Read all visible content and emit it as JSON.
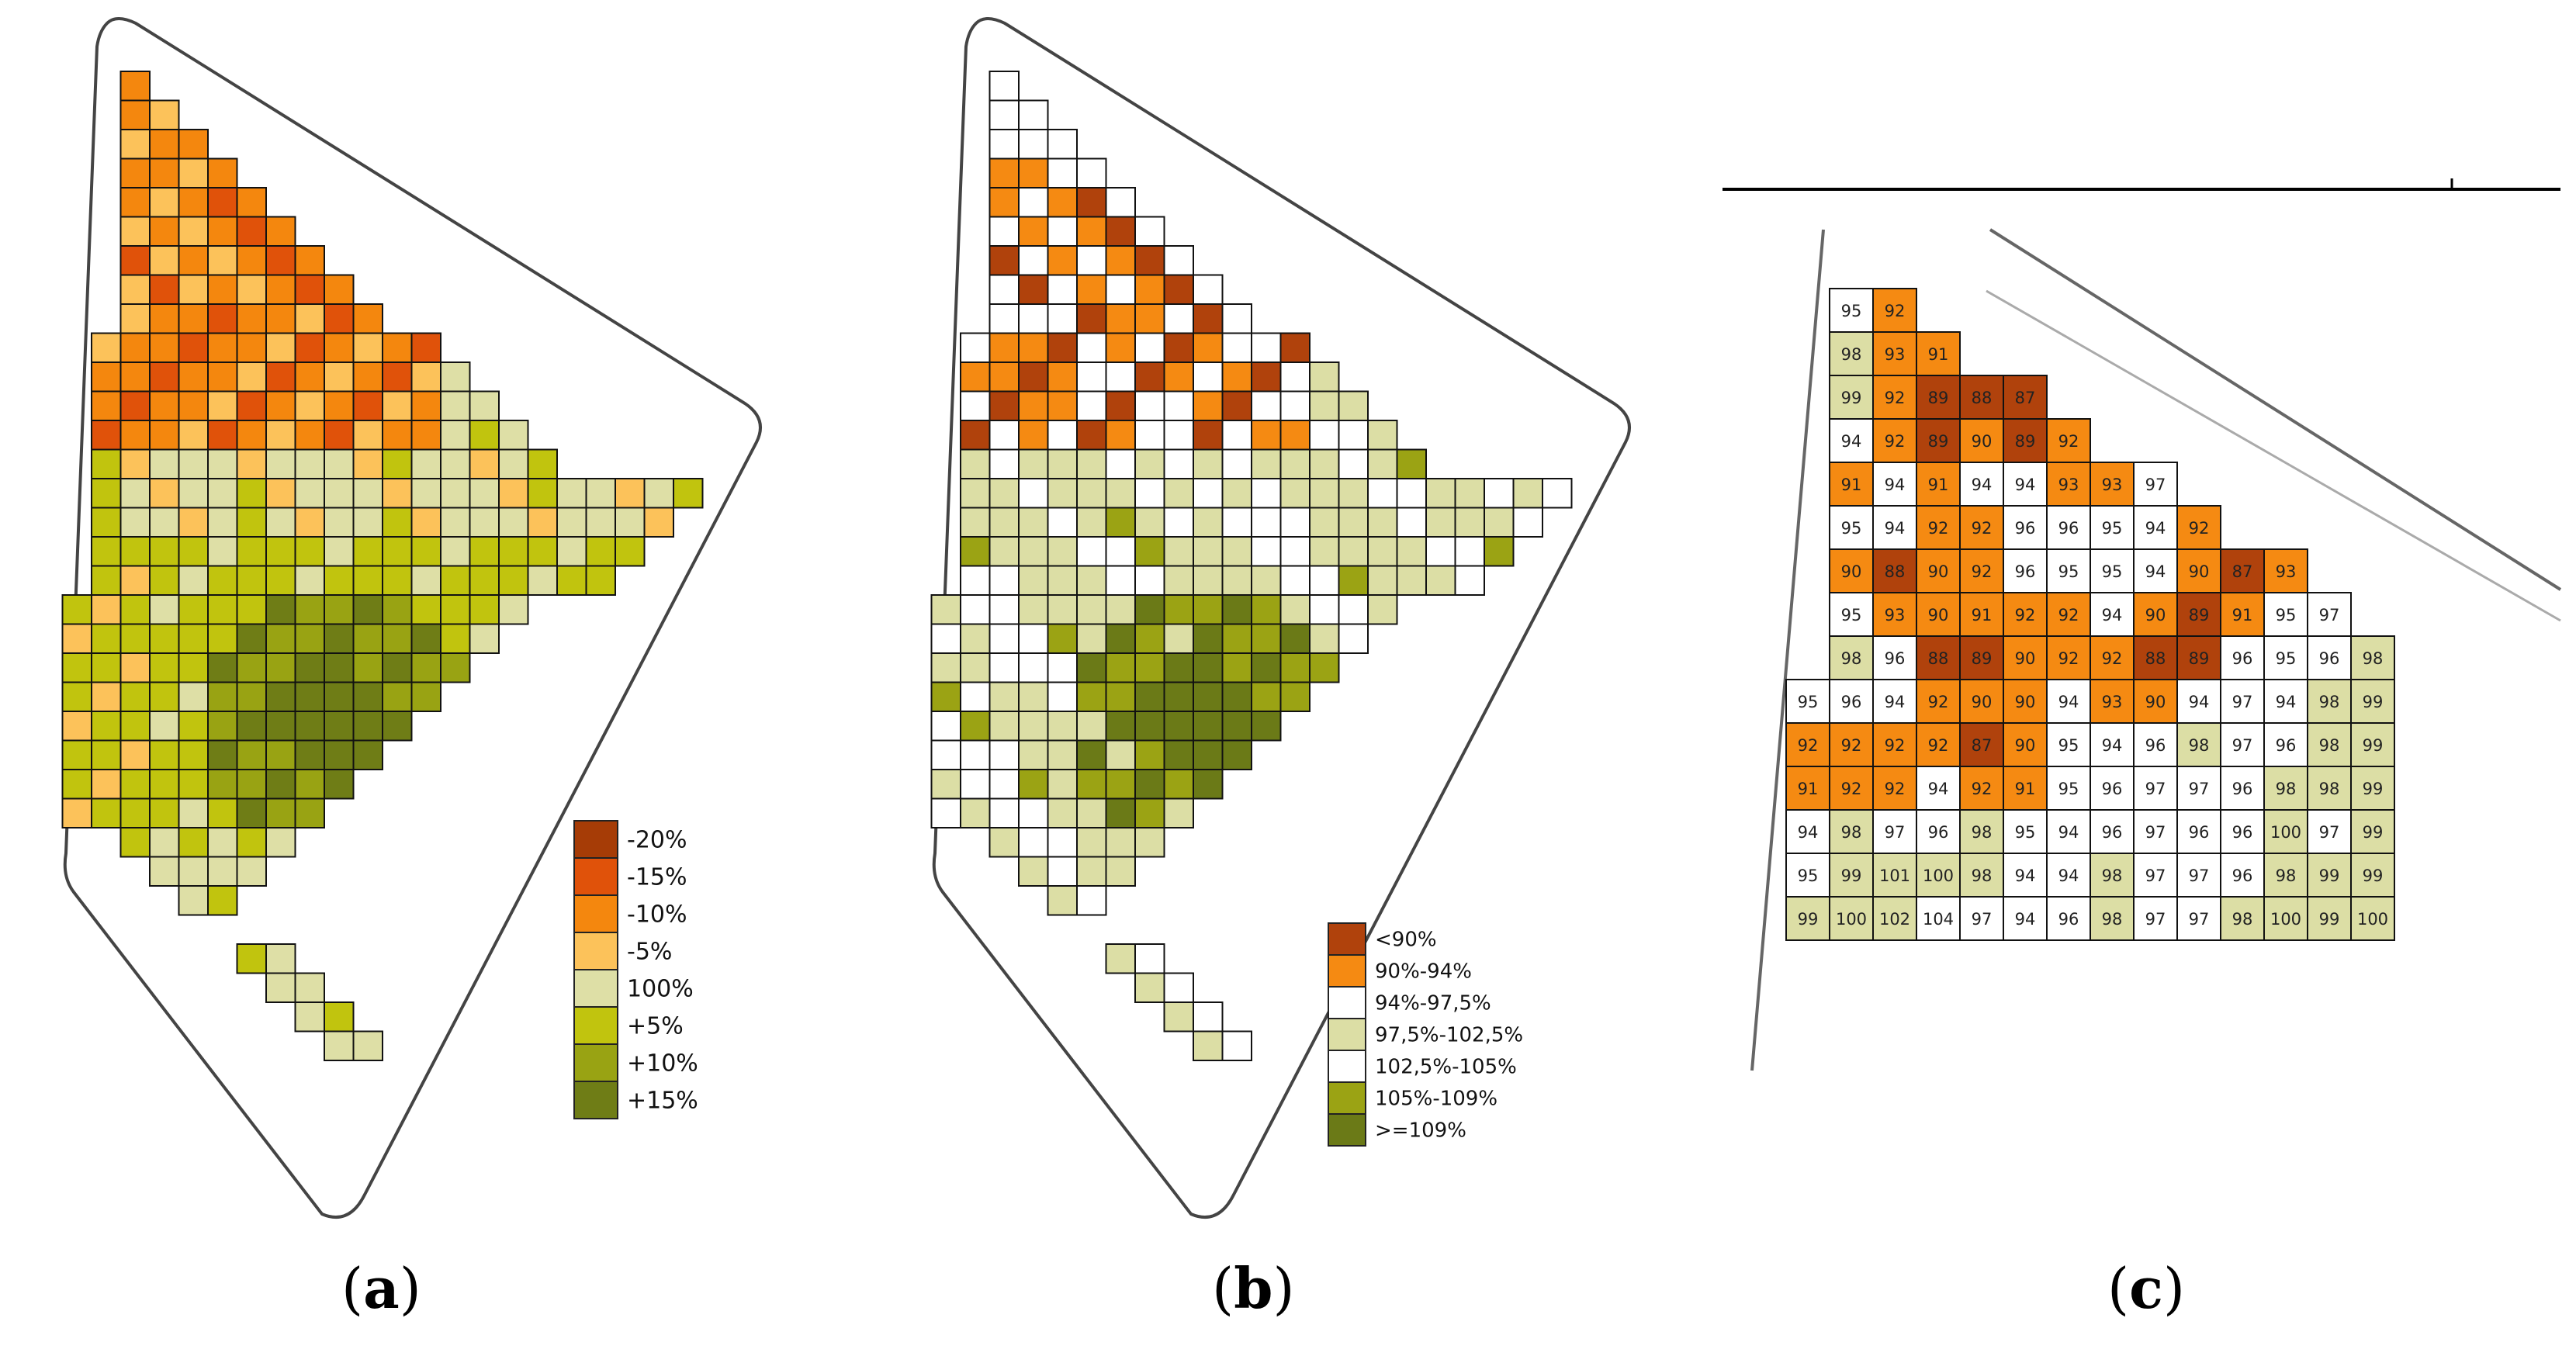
{
  "colors": {
    "grid": "#111111",
    "outline": "#555555",
    "a": {
      "m20": "#A63C06",
      "m15": "#E0520A",
      "m10": "#F4870E",
      "m5": "#FCC25A",
      "z": "#DEDFA6",
      "p5": "#C1C40E",
      "p10": "#99A313",
      "p15": "#6F7D16"
    },
    "b": {
      "l90": "#B0420C",
      "l94": "#F58A12",
      "l97": "#FFFFFF",
      "l102": "#DCDEA5",
      "l105": "#FFFFFF",
      "l109": "#9BA314",
      "ge109": "#6B7A17"
    }
  },
  "panel_a": {
    "caption_letter": "a",
    "legend": [
      {
        "key": "m20",
        "label": "-20%"
      },
      {
        "key": "m15",
        "label": "-15%"
      },
      {
        "key": "m10",
        "label": "-10%"
      },
      {
        "key": "m5",
        "label": "-5%"
      },
      {
        "key": "z",
        "label": "100%"
      },
      {
        "key": "p5",
        "label": "+5%"
      },
      {
        "key": "p10",
        "label": "+10%"
      },
      {
        "key": "p15",
        "label": "+15%"
      }
    ]
  },
  "panel_b": {
    "caption_letter": "b",
    "legend": [
      {
        "key": "l90",
        "label": "<90%"
      },
      {
        "key": "l94",
        "label": "90%-94%"
      },
      {
        "key": "l97",
        "label": "94%-97,5%"
      },
      {
        "key": "l102",
        "label": "97,5%-102,5%"
      },
      {
        "key": "l105",
        "label": "102,5%-105%"
      },
      {
        "key": "l109",
        "label": "105%-109%"
      },
      {
        "key": "ge109",
        "label": ">=109%"
      }
    ]
  },
  "panel_c": {
    "caption_letter": "c",
    "rows": [
      [
        null,
        95,
        92
      ],
      [
        null,
        98,
        93,
        91
      ],
      [
        null,
        99,
        92,
        89,
        88,
        87
      ],
      [
        null,
        94,
        92,
        89,
        90,
        89,
        92
      ],
      [
        null,
        91,
        94,
        91,
        94,
        94,
        93,
        93,
        97
      ],
      [
        null,
        95,
        94,
        92,
        92,
        96,
        96,
        95,
        94,
        92
      ],
      [
        null,
        90,
        88,
        90,
        92,
        96,
        95,
        95,
        94,
        90,
        87,
        93
      ],
      [
        null,
        95,
        93,
        90,
        91,
        92,
        92,
        94,
        90,
        89,
        91,
        95,
        97
      ],
      [
        null,
        98,
        96,
        88,
        89,
        90,
        92,
        92,
        88,
        89,
        96,
        95,
        96,
        98
      ],
      [
        95,
        96,
        94,
        92,
        90,
        90,
        94,
        93,
        90,
        94,
        97,
        94,
        98,
        99
      ],
      [
        92,
        92,
        92,
        92,
        87,
        90,
        95,
        94,
        96,
        98,
        97,
        96,
        98,
        99
      ],
      [
        91,
        92,
        92,
        94,
        92,
        91,
        95,
        96,
        97,
        97,
        96,
        98,
        98,
        99
      ],
      [
        94,
        98,
        97,
        96,
        98,
        95,
        94,
        96,
        97,
        96,
        96,
        100,
        97,
        99
      ],
      [
        95,
        99,
        101,
        100,
        98,
        94,
        94,
        98,
        97,
        97,
        96,
        98,
        99,
        99
      ],
      [
        99,
        100,
        102,
        104,
        97,
        94,
        96,
        98,
        97,
        97,
        98,
        100,
        99,
        100
      ]
    ]
  }
}
